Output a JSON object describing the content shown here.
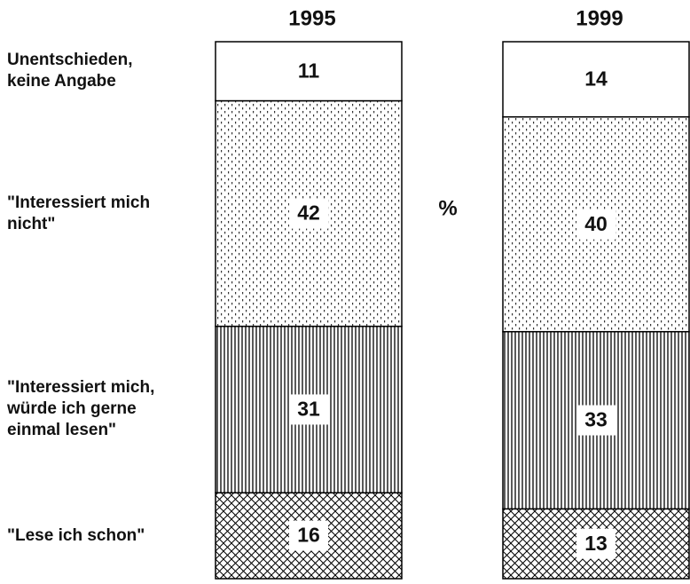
{
  "chart_data": {
    "type": "stacked_bar",
    "categories": [
      "1995",
      "1999"
    ],
    "unit": "%",
    "ylim": [
      0,
      100
    ],
    "series": [
      {
        "name": "\"Lese ich schon\"",
        "color": "#000000",
        "pattern": "crosshatch",
        "values": [
          16,
          13
        ]
      },
      {
        "name": "\"Interessiert mich, würde ich gerne einmal lesen\"",
        "color": "#000000",
        "pattern": "vertical",
        "values": [
          31,
          33
        ]
      },
      {
        "name": "\"Interessiert mich nicht\"",
        "color": "#000000",
        "pattern": "dots",
        "values": [
          42,
          40
        ]
      },
      {
        "name": "Unentschieden, keine Angabe",
        "color": "#000000",
        "pattern": "none",
        "values": [
          11,
          14
        ]
      }
    ]
  }
}
